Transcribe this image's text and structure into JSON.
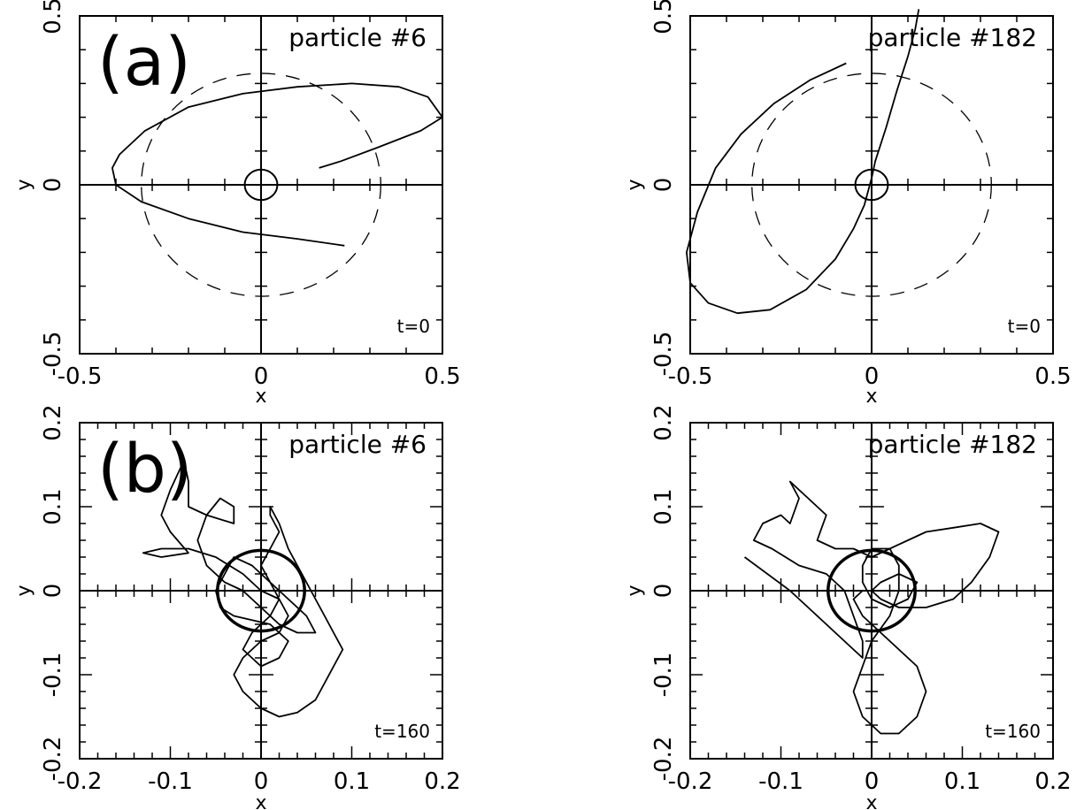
{
  "figure": {
    "panel_labels": [
      "(a)",
      "(b)"
    ]
  },
  "chart_data": [
    {
      "type": "line",
      "panel": "(a)",
      "title": "particle #6",
      "annotation": "t=0",
      "xlabel": "x",
      "ylabel": "y",
      "xlim": [
        -0.5,
        0.5
      ],
      "ylim": [
        -0.5,
        0.5
      ],
      "xticks": [
        "-0.5",
        "0",
        "0.5"
      ],
      "yticks": [
        "-0.5",
        "0",
        "0.5"
      ],
      "grid": false,
      "circles": [
        {
          "style": "dashed",
          "cx": 0,
          "cy": 0,
          "r": 0.33
        },
        {
          "style": "solid",
          "cx": 0,
          "cy": 0,
          "r": 0.045
        }
      ],
      "series": [
        {
          "points": [
            [
              0.23,
              -0.18
            ],
            [
              0.1,
              -0.16
            ],
            [
              -0.05,
              -0.14
            ],
            [
              -0.2,
              -0.1
            ],
            [
              -0.33,
              -0.05
            ],
            [
              -0.4,
              0.0
            ],
            [
              -0.41,
              0.05
            ],
            [
              -0.39,
              0.09
            ],
            [
              -0.32,
              0.16
            ],
            [
              -0.2,
              0.23
            ],
            [
              -0.05,
              0.27
            ],
            [
              0.1,
              0.29
            ],
            [
              0.25,
              0.3
            ],
            [
              0.38,
              0.29
            ],
            [
              0.46,
              0.26
            ],
            [
              0.5,
              0.2
            ],
            [
              0.44,
              0.16
            ],
            [
              0.32,
              0.11
            ],
            [
              0.22,
              0.07
            ],
            [
              0.16,
              0.05
            ]
          ]
        }
      ]
    },
    {
      "type": "line",
      "panel": "",
      "title": "particle #182",
      "annotation": "t=0",
      "xlabel": "x",
      "ylabel": "y",
      "xlim": [
        -0.5,
        0.5
      ],
      "ylim": [
        -0.5,
        0.5
      ],
      "xticks": [
        "-0.5",
        "0",
        "0.5"
      ],
      "yticks": [
        "-0.5",
        "0",
        "0.5"
      ],
      "grid": false,
      "circles": [
        {
          "style": "dashed",
          "cx": 0,
          "cy": 0,
          "r": 0.33
        },
        {
          "style": "solid",
          "cx": 0,
          "cy": 0,
          "r": 0.045
        }
      ],
      "series": [
        {
          "points": [
            [
              -0.07,
              0.36
            ],
            [
              -0.17,
              0.31
            ],
            [
              -0.27,
              0.24
            ],
            [
              -0.36,
              0.15
            ],
            [
              -0.43,
              0.05
            ],
            [
              -0.48,
              -0.08
            ],
            [
              -0.51,
              -0.2
            ],
            [
              -0.5,
              -0.29
            ],
            [
              -0.45,
              -0.35
            ],
            [
              -0.37,
              -0.38
            ],
            [
              -0.28,
              -0.37
            ],
            [
              -0.18,
              -0.31
            ],
            [
              -0.1,
              -0.22
            ],
            [
              -0.05,
              -0.13
            ],
            [
              -0.02,
              -0.06
            ],
            [
              0.0,
              0.02
            ],
            [
              0.01,
              0.07
            ],
            [
              0.04,
              0.17
            ],
            [
              0.07,
              0.28
            ],
            [
              0.1,
              0.38
            ],
            [
              0.12,
              0.46
            ],
            [
              0.13,
              0.52
            ]
          ]
        }
      ]
    },
    {
      "type": "line",
      "panel": "(b)",
      "title": "particle #6",
      "annotation": "t=160",
      "xlabel": "x",
      "ylabel": "y",
      "xlim": [
        -0.2,
        0.2
      ],
      "ylim": [
        -0.2,
        0.2
      ],
      "xticks": [
        "-0.2",
        "-0.1",
        "0",
        "0.1",
        "0.2"
      ],
      "yticks": [
        "-0.2",
        "-0.1",
        "0",
        "0.1",
        "0.2"
      ],
      "grid": false,
      "circles": [
        {
          "style": "solid-thick",
          "cx": 0,
          "cy": 0,
          "r": 0.048
        }
      ],
      "series": [
        {
          "points": [
            [
              0.0,
              0.0
            ],
            [
              -0.02,
              0.02
            ],
            [
              -0.05,
              0.04
            ],
            [
              -0.08,
              0.05
            ],
            [
              -0.11,
              0.05
            ],
            [
              -0.13,
              0.045
            ],
            [
              -0.11,
              0.04
            ],
            [
              -0.08,
              0.045
            ],
            [
              -0.1,
              0.07
            ],
            [
              -0.11,
              0.09
            ],
            [
              -0.1,
              0.12
            ],
            [
              -0.085,
              0.155
            ],
            [
              -0.08,
              0.13
            ],
            [
              -0.08,
              0.1
            ],
            [
              -0.06,
              0.09
            ],
            [
              -0.03,
              0.08
            ],
            [
              -0.03,
              0.1
            ],
            [
              -0.045,
              0.11
            ],
            [
              -0.06,
              0.09
            ],
            [
              -0.07,
              0.06
            ],
            [
              -0.06,
              0.03
            ],
            [
              -0.04,
              0.01
            ],
            [
              -0.02,
              0.0
            ],
            [
              0.0,
              -0.02
            ],
            [
              0.02,
              -0.04
            ],
            [
              0.04,
              -0.05
            ],
            [
              0.06,
              -0.05
            ],
            [
              0.05,
              -0.03
            ],
            [
              0.03,
              -0.01
            ],
            [
              0.01,
              0.01
            ],
            [
              -0.01,
              0.03
            ],
            [
              -0.03,
              0.04
            ],
            [
              -0.04,
              0.02
            ],
            [
              -0.05,
              0.0
            ],
            [
              -0.045,
              -0.02
            ],
            [
              -0.03,
              -0.03
            ],
            [
              -0.01,
              -0.035
            ],
            [
              0.01,
              -0.04
            ],
            [
              0.03,
              -0.06
            ],
            [
              0.02,
              -0.08
            ],
            [
              0.0,
              -0.09
            ],
            [
              -0.02,
              -0.07
            ],
            [
              -0.01,
              -0.05
            ],
            [
              0.01,
              -0.03
            ],
            [
              0.02,
              -0.01
            ],
            [
              0.01,
              0.01
            ],
            [
              0.0,
              0.03
            ],
            [
              0.01,
              0.05
            ],
            [
              0.02,
              0.07
            ],
            [
              0.01,
              0.09
            ],
            [
              0.01,
              0.1
            ],
            [
              0.02,
              0.08
            ],
            [
              0.03,
              0.05
            ],
            [
              0.04,
              0.03
            ],
            [
              0.05,
              0.01
            ],
            [
              0.06,
              -0.01
            ],
            [
              0.07,
              -0.03
            ],
            [
              0.08,
              -0.05
            ],
            [
              0.09,
              -0.07
            ],
            [
              0.08,
              -0.09
            ],
            [
              0.07,
              -0.11
            ],
            [
              0.06,
              -0.13
            ],
            [
              0.04,
              -0.145
            ],
            [
              0.02,
              -0.15
            ],
            [
              0.0,
              -0.14
            ],
            [
              -0.02,
              -0.12
            ],
            [
              -0.03,
              -0.1
            ],
            [
              -0.02,
              -0.08
            ],
            [
              0.0,
              -0.06
            ],
            [
              0.02,
              -0.05
            ],
            [
              0.03,
              -0.03
            ],
            [
              0.02,
              -0.01
            ],
            [
              0.0,
              0.0
            ]
          ]
        }
      ]
    },
    {
      "type": "line",
      "panel": "",
      "title": "particle #182",
      "annotation": "t=160",
      "xlabel": "x",
      "ylabel": "y",
      "xlim": [
        -0.2,
        0.2
      ],
      "ylim": [
        -0.2,
        0.2
      ],
      "xticks": [
        "-0.2",
        "-0.1",
        "0",
        "0.1",
        "0.2"
      ],
      "yticks": [
        "-0.2",
        "-0.1",
        "0",
        "0.1",
        "0.2"
      ],
      "grid": false,
      "circles": [
        {
          "style": "solid-thick",
          "cx": 0,
          "cy": 0,
          "r": 0.048
        }
      ],
      "series": [
        {
          "points": [
            [
              -0.14,
              0.04
            ],
            [
              -0.09,
              0.0
            ],
            [
              -0.05,
              -0.04
            ],
            [
              -0.02,
              -0.07
            ],
            [
              -0.01,
              -0.08
            ],
            [
              -0.01,
              -0.06
            ],
            [
              -0.02,
              -0.03
            ],
            [
              -0.03,
              0.0
            ],
            [
              -0.05,
              0.02
            ],
            [
              -0.08,
              0.03
            ],
            [
              -0.11,
              0.05
            ],
            [
              -0.13,
              0.06
            ],
            [
              -0.12,
              0.08
            ],
            [
              -0.1,
              0.09
            ],
            [
              -0.09,
              0.08
            ],
            [
              -0.08,
              0.11
            ],
            [
              -0.09,
              0.13
            ],
            [
              -0.08,
              0.12
            ],
            [
              -0.07,
              0.11
            ],
            [
              -0.06,
              0.1
            ],
            [
              -0.05,
              0.09
            ],
            [
              -0.055,
              0.075
            ],
            [
              -0.06,
              0.06
            ],
            [
              -0.04,
              0.05
            ],
            [
              -0.02,
              0.05
            ],
            [
              0.0,
              0.04
            ],
            [
              0.02,
              0.05
            ],
            [
              0.04,
              0.06
            ],
            [
              0.06,
              0.07
            ],
            [
              0.09,
              0.075
            ],
            [
              0.12,
              0.08
            ],
            [
              0.14,
              0.07
            ],
            [
              0.13,
              0.04
            ],
            [
              0.11,
              0.01
            ],
            [
              0.09,
              -0.01
            ],
            [
              0.06,
              -0.02
            ],
            [
              0.03,
              -0.02
            ],
            [
              0.01,
              -0.01
            ],
            [
              0.0,
              0.0
            ],
            [
              0.01,
              0.01
            ],
            [
              0.03,
              0.02
            ],
            [
              0.05,
              0.01
            ],
            [
              0.04,
              -0.01
            ],
            [
              0.02,
              -0.02
            ],
            [
              0.0,
              -0.01
            ],
            [
              -0.01,
              0.01
            ],
            [
              -0.01,
              0.03
            ],
            [
              0.0,
              0.05
            ],
            [
              0.02,
              0.05
            ],
            [
              0.03,
              0.03
            ],
            [
              0.03,
              0.0
            ],
            [
              0.02,
              -0.03
            ],
            [
              0.0,
              -0.06
            ],
            [
              -0.01,
              -0.09
            ],
            [
              -0.02,
              -0.12
            ],
            [
              -0.01,
              -0.15
            ],
            [
              0.01,
              -0.17
            ],
            [
              0.03,
              -0.17
            ],
            [
              0.05,
              -0.15
            ],
            [
              0.06,
              -0.12
            ],
            [
              0.05,
              -0.09
            ],
            [
              0.03,
              -0.07
            ],
            [
              0.01,
              -0.05
            ],
            [
              -0.01,
              -0.03
            ],
            [
              -0.02,
              -0.01
            ],
            [
              -0.01,
              0.0
            ]
          ]
        }
      ]
    }
  ]
}
